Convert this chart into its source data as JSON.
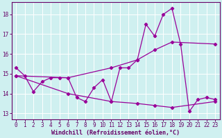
{
  "xlabel": "Windchill (Refroidissement éolien,°C)",
  "background_color": "#cff0f0",
  "grid_color": "#ffffff",
  "line_color": "#990099",
  "marker_color": "#990099",
  "xlim": [
    -0.5,
    23.5
  ],
  "ylim": [
    12.7,
    18.6
  ],
  "yticks": [
    13,
    14,
    15,
    16,
    17,
    18
  ],
  "xticks": [
    0,
    1,
    2,
    3,
    4,
    5,
    6,
    7,
    8,
    9,
    10,
    11,
    12,
    13,
    14,
    15,
    16,
    17,
    18,
    19,
    20,
    21,
    22,
    23
  ],
  "series1_x": [
    0,
    1,
    2,
    3,
    4,
    5,
    6,
    7,
    8,
    9,
    10,
    11,
    12,
    13,
    14,
    15,
    16,
    17,
    18,
    19,
    20,
    21,
    22,
    23
  ],
  "series1_y": [
    15.3,
    14.9,
    14.1,
    14.6,
    14.8,
    14.8,
    14.8,
    13.8,
    13.6,
    14.3,
    14.7,
    13.6,
    15.3,
    15.3,
    15.7,
    17.5,
    16.9,
    18.0,
    18.3,
    16.5,
    13.1,
    13.7,
    13.8,
    13.7
  ],
  "series2_x": [
    0,
    6,
    11,
    14,
    16,
    18,
    23
  ],
  "series2_y": [
    14.9,
    14.8,
    15.3,
    15.7,
    16.2,
    16.6,
    16.5
  ],
  "series3_x": [
    0,
    6,
    11,
    14,
    16,
    18,
    23
  ],
  "series3_y": [
    14.9,
    14.0,
    13.6,
    13.5,
    13.4,
    13.3,
    13.6
  ],
  "tick_fontsize": 5.5,
  "xlabel_fontsize": 6.0,
  "spine_color": "#660066",
  "tick_color": "#660066"
}
